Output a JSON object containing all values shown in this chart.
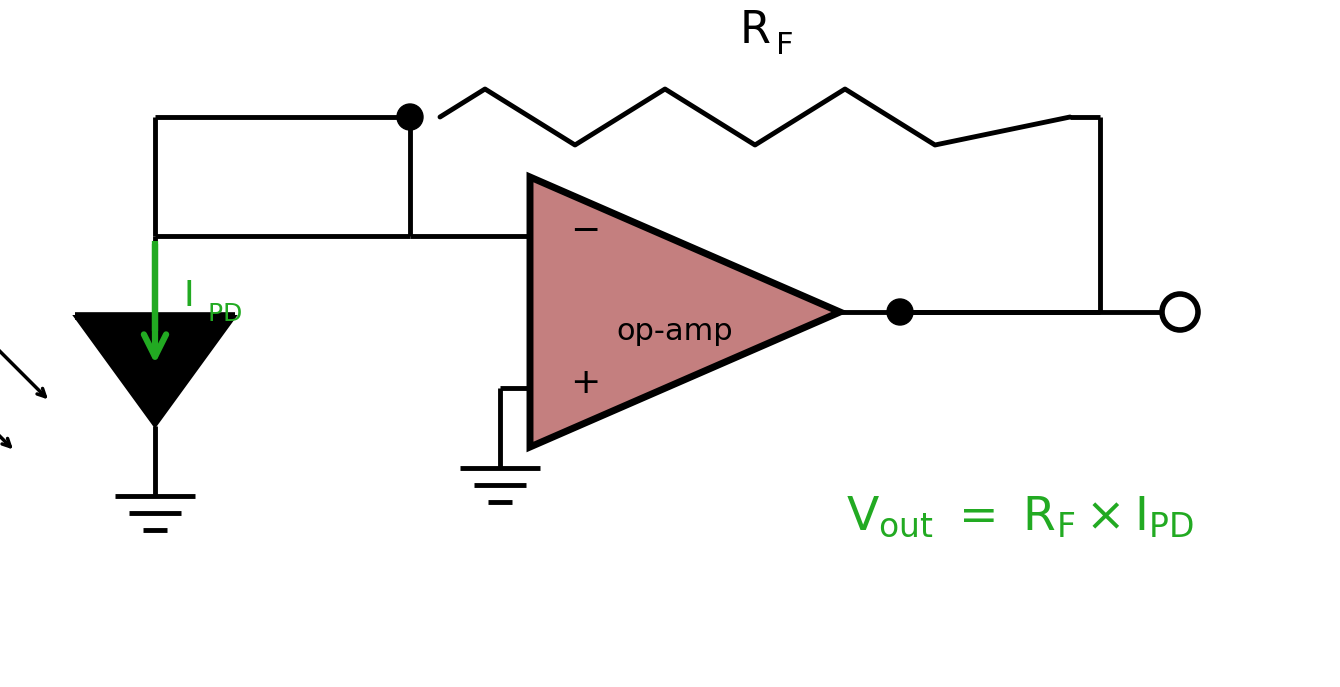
{
  "bg_color": "#ffffff",
  "line_color": "#000000",
  "green_color": "#22aa22",
  "opamp_fill": "#c47f7f",
  "opamp_edge": "#000000",
  "line_width": 3.5,
  "fig_width": 13.4,
  "fig_height": 6.87
}
